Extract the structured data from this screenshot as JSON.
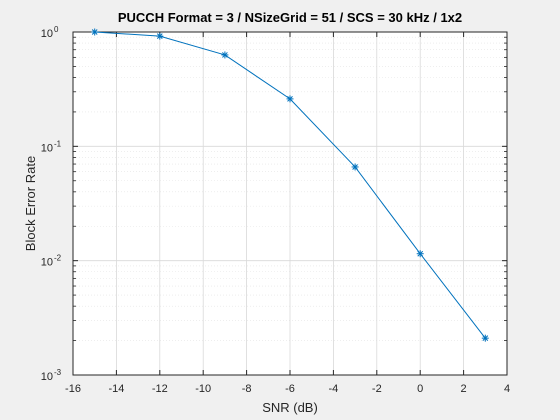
{
  "chart_data": {
    "type": "line",
    "title": "PUCCH Format = 3 / NSizeGrid = 51 / SCS = 30 kHz / 1x2",
    "xlabel": "SNR (dB)",
    "ylabel": "Block Error Rate",
    "xlim": [
      -16,
      4
    ],
    "ylim": [
      0.001,
      1
    ],
    "yscale": "log",
    "xticks": [
      -16,
      -14,
      -12,
      -10,
      -8,
      -6,
      -4,
      -2,
      0,
      2,
      4
    ],
    "xtick_labels": [
      "-16",
      "-14",
      "-12",
      "-10",
      "-8",
      "-6",
      "-4",
      "-2",
      "0",
      "2",
      "4"
    ],
    "yticks": [
      {
        "base": "10",
        "exp": "-3",
        "value": 0.001
      },
      {
        "base": "10",
        "exp": "-2",
        "value": 0.01
      },
      {
        "base": "10",
        "exp": "-1",
        "value": 0.1
      },
      {
        "base": "10",
        "exp": "0",
        "value": 1
      }
    ],
    "grid": true,
    "minor_grid": true,
    "marker": "asterisk",
    "color": "#0072bd",
    "series": [
      {
        "x": [
          -15,
          -12,
          -9,
          -6,
          -3,
          0,
          3
        ],
        "values": [
          1.0,
          0.92,
          0.63,
          0.26,
          0.066,
          0.0115,
          0.0021
        ]
      }
    ]
  }
}
